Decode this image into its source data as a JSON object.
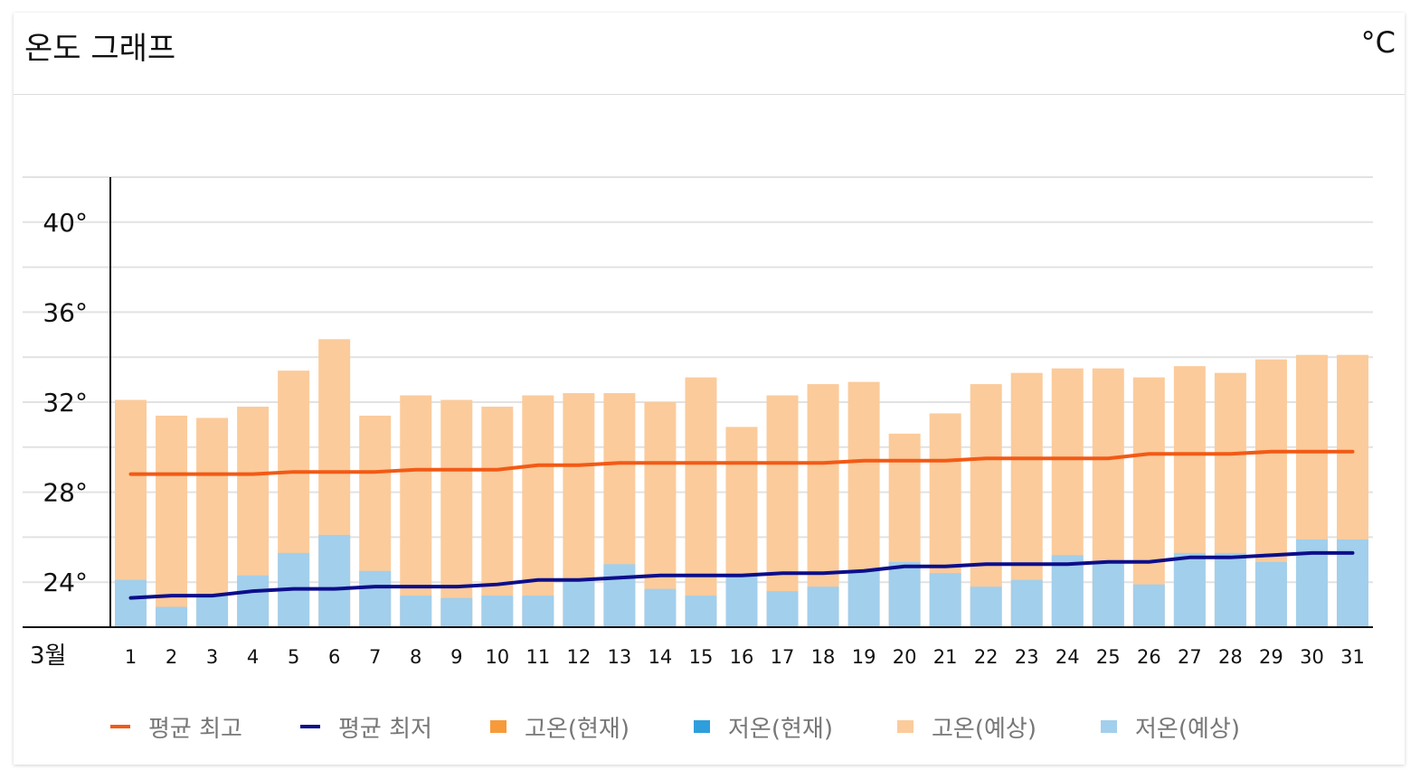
{
  "card": {
    "title": "온도 그래프",
    "unit": "°C"
  },
  "legend": [
    {
      "label": "평균 최고",
      "kind": "line",
      "color": "#f25a16"
    },
    {
      "label": "평균 최저",
      "kind": "line",
      "color": "#0c0e8a"
    },
    {
      "label": "고온(현재)",
      "kind": "box",
      "color": "#f79a3a"
    },
    {
      "label": "저온(현재)",
      "kind": "box",
      "color": "#2e9fdc"
    },
    {
      "label": "고온(예상)",
      "kind": "box",
      "color": "#fbcb9b"
    },
    {
      "label": "저온(예상)",
      "kind": "box",
      "color": "#a2cfec"
    }
  ],
  "chart_data": {
    "type": "bar",
    "xlabel": "3월",
    "categories": [
      "1",
      "2",
      "3",
      "4",
      "5",
      "6",
      "7",
      "8",
      "9",
      "10",
      "11",
      "12",
      "13",
      "14",
      "15",
      "16",
      "17",
      "18",
      "19",
      "20",
      "21",
      "22",
      "23",
      "24",
      "25",
      "26",
      "27",
      "28",
      "29",
      "30",
      "31"
    ],
    "ylim": [
      22,
      42
    ],
    "yticks": [
      {
        "value": 24,
        "label": "24°"
      },
      {
        "value": 28,
        "label": "28°"
      },
      {
        "value": 32,
        "label": "32°"
      },
      {
        "value": 36,
        "label": "36°"
      },
      {
        "value": 40,
        "label": "40°"
      }
    ],
    "grid": true,
    "series": [
      {
        "name": "고온(예상)",
        "kind": "bar",
        "color": "#fbcb9b",
        "values": [
          32.1,
          31.4,
          31.3,
          31.8,
          33.4,
          34.8,
          31.4,
          32.3,
          32.1,
          31.8,
          32.3,
          32.4,
          32.4,
          32.0,
          33.1,
          30.9,
          32.3,
          32.8,
          32.9,
          30.6,
          31.5,
          32.8,
          33.3,
          33.5,
          33.5,
          33.1,
          33.6,
          33.3,
          33.9,
          34.1,
          34.1
        ]
      },
      {
        "name": "저온(예상)",
        "kind": "bar",
        "color": "#a2cfec",
        "values": [
          24.1,
          22.9,
          23.4,
          24.3,
          25.3,
          26.1,
          24.5,
          23.4,
          23.3,
          23.4,
          23.4,
          24.1,
          24.8,
          23.7,
          23.4,
          24.3,
          23.6,
          23.8,
          24.5,
          24.9,
          24.4,
          23.8,
          24.1,
          25.2,
          24.9,
          23.9,
          25.3,
          25.3,
          24.9,
          25.9,
          25.9
        ]
      },
      {
        "name": "평균 최고",
        "kind": "line",
        "color": "#f25a16",
        "values": [
          28.8,
          28.8,
          28.8,
          28.8,
          28.9,
          28.9,
          28.9,
          29.0,
          29.0,
          29.0,
          29.2,
          29.2,
          29.3,
          29.3,
          29.3,
          29.3,
          29.3,
          29.3,
          29.4,
          29.4,
          29.4,
          29.5,
          29.5,
          29.5,
          29.5,
          29.7,
          29.7,
          29.7,
          29.8,
          29.8,
          29.8
        ]
      },
      {
        "name": "평균 최저",
        "kind": "line",
        "color": "#0c0e8a",
        "values": [
          23.3,
          23.4,
          23.4,
          23.6,
          23.7,
          23.7,
          23.8,
          23.8,
          23.8,
          23.9,
          24.1,
          24.1,
          24.2,
          24.3,
          24.3,
          24.3,
          24.4,
          24.4,
          24.5,
          24.7,
          24.7,
          24.8,
          24.8,
          24.8,
          24.9,
          24.9,
          25.1,
          25.1,
          25.2,
          25.3,
          25.3
        ]
      }
    ]
  }
}
